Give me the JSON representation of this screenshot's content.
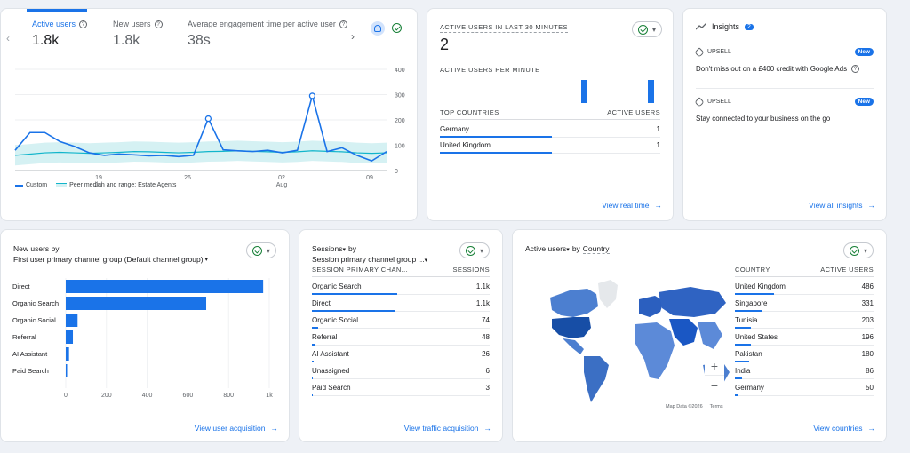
{
  "overview": {
    "metrics": [
      {
        "label": "Active users",
        "value": "1.8k"
      },
      {
        "label": "New users",
        "value": "1.8k"
      },
      {
        "label": "Average engagement time per active user",
        "value": "38s"
      }
    ],
    "y_ticks": [
      "400",
      "300",
      "200",
      "100",
      "0"
    ],
    "x_ticks": [
      {
        "day": "19",
        "month": "Jul"
      },
      {
        "day": "26",
        "month": ""
      },
      {
        "day": "02",
        "month": "Aug"
      },
      {
        "day": "09",
        "month": ""
      }
    ],
    "legend": {
      "custom": "Custom",
      "peer": "Peer median and range: Estate Agents"
    },
    "chart_data": {
      "type": "line",
      "ylim": [
        0,
        400
      ],
      "x_labels": [
        "19 Jul",
        "26",
        "02 Aug",
        "09"
      ],
      "series": [
        {
          "name": "Custom",
          "values": [
            80,
            150,
            150,
            115,
            95,
            70,
            60,
            65,
            62,
            58,
            60,
            55,
            60,
            205,
            82,
            78,
            75,
            80,
            70,
            80,
            295,
            75,
            90,
            60,
            38,
            75
          ]
        },
        {
          "name": "Peer median and range: Estate Agents",
          "values": [
            60,
            65,
            70,
            72,
            70,
            68,
            70,
            72,
            75,
            74,
            72,
            70,
            72,
            75,
            76,
            78,
            76,
            74,
            72,
            74,
            78,
            76,
            74,
            70,
            68,
            70
          ]
        }
      ]
    }
  },
  "realtime": {
    "title": "ACTIVE USERS IN LAST 30 MINUTES",
    "count": "2",
    "per_minute_label": "ACTIVE USERS PER MINUTE",
    "per_minute_bars": [
      0,
      0,
      0,
      0,
      0,
      0,
      0,
      0,
      0,
      0,
      0,
      0,
      0,
      0,
      0,
      0,
      0,
      0,
      0,
      1,
      0,
      0,
      0,
      0,
      0,
      0,
      0,
      0,
      1,
      0
    ],
    "col_country": "TOP COUNTRIES",
    "col_users": "ACTIVE USERS",
    "rows": [
      {
        "name": "Germany",
        "value": "1",
        "share": 1.0
      },
      {
        "name": "United Kingdom",
        "value": "1",
        "share": 1.0
      }
    ],
    "link": "View real time"
  },
  "insights": {
    "title": "Insights",
    "badge": "2",
    "items": [
      {
        "tag": "UPSELL",
        "badge": "New",
        "text": "Don't miss out on a £400 credit with Google Ads"
      },
      {
        "tag": "UPSELL",
        "badge": "New",
        "text": "Stay connected to your business on the go"
      }
    ],
    "link": "View all insights"
  },
  "new_users": {
    "title": "New users by",
    "subtitle": "First user primary channel group (Default channel group)",
    "chart_data": {
      "type": "bar",
      "orientation": "horizontal",
      "categories": [
        "Direct",
        "Organic Search",
        "Organic Social",
        "Referral",
        "AI Assistant",
        "Paid Search"
      ],
      "values": [
        970,
        690,
        58,
        35,
        16,
        6
      ],
      "xlim": [
        0,
        1000
      ],
      "x_ticks": [
        "0",
        "200",
        "400",
        "600",
        "800",
        "1k"
      ]
    },
    "link": "View user acquisition"
  },
  "sessions": {
    "title_metric": "Sessions",
    "title_by": "by",
    "subtitle": "Session primary channel group ...",
    "col_channel": "SESSION PRIMARY CHAN...",
    "col_value": "SESSIONS",
    "rows": [
      {
        "name": "Organic Search",
        "value": "1.1k",
        "share": 1.0
      },
      {
        "name": "Direct",
        "value": "1.1k",
        "share": 0.98
      },
      {
        "name": "Organic Social",
        "value": "74",
        "share": 0.07
      },
      {
        "name": "Referral",
        "value": "48",
        "share": 0.045
      },
      {
        "name": "AI Assistant",
        "value": "26",
        "share": 0.025
      },
      {
        "name": "Unassigned",
        "value": "6",
        "share": 0.006
      },
      {
        "name": "Paid Search",
        "value": "3",
        "share": 0.003
      }
    ],
    "link": "View traffic acquisition"
  },
  "countries": {
    "title_metric": "Active users",
    "title_by": "by",
    "title_dim": "Country",
    "col_country": "COUNTRY",
    "col_users": "ACTIVE USERS",
    "rows": [
      {
        "name": "United Kingdom",
        "value": "486",
        "share": 1.0
      },
      {
        "name": "Singapore",
        "value": "331",
        "share": 0.68
      },
      {
        "name": "Tunisia",
        "value": "203",
        "share": 0.42
      },
      {
        "name": "United States",
        "value": "196",
        "share": 0.4
      },
      {
        "name": "Pakistan",
        "value": "180",
        "share": 0.37
      },
      {
        "name": "India",
        "value": "86",
        "share": 0.18
      },
      {
        "name": "Germany",
        "value": "50",
        "share": 0.1
      }
    ],
    "map_credit": "Map Data ©2026",
    "map_terms": "Terms",
    "zoom_in": "+",
    "zoom_out": "−",
    "link": "View countries"
  },
  "colors": {
    "accent": "#1a73e8",
    "peer": "#12b5cb",
    "peer_band": "#d5f1f3"
  }
}
